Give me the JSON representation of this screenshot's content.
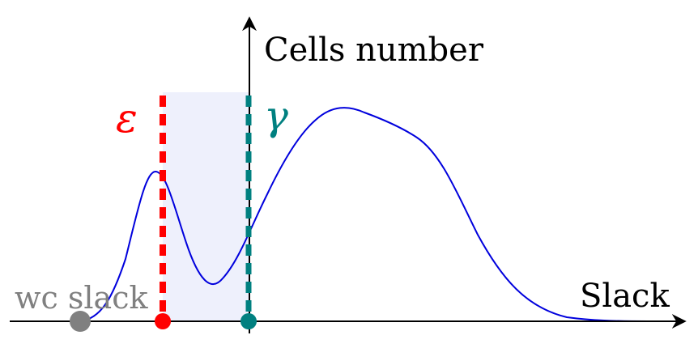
{
  "labels": {
    "y_axis": "Cells number",
    "x_axis": "Slack",
    "wc_slack": "wc slack",
    "epsilon": "ε",
    "gamma": "γ"
  },
  "colors": {
    "axis": "#000000",
    "curve": "#0000dd",
    "epsilon": "#ff0000",
    "gamma": "#008080",
    "wc_slack": "#808080",
    "shade": "#eef0fc"
  }
}
